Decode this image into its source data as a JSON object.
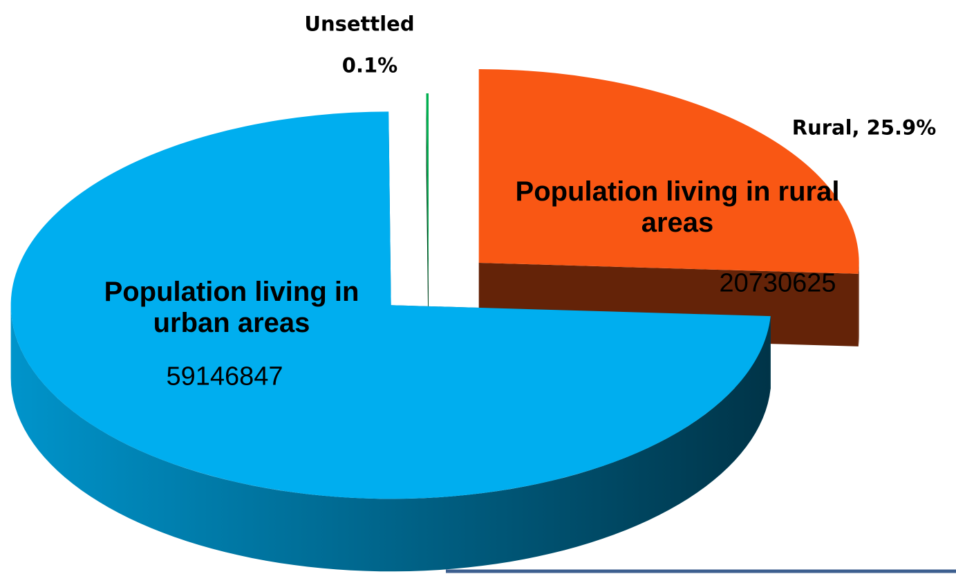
{
  "chart_data": {
    "type": "pie3d",
    "categories": [
      "Population living in rural areas",
      "Population living in urban areas",
      "Unsettled"
    ],
    "values": [
      25.9,
      74.0,
      0.1
    ],
    "value_labels": [
      "Rural, 25.9%",
      null,
      "0.1%"
    ],
    "counts": [
      "20730625",
      "59146847",
      null
    ],
    "colors": [
      "#f95714",
      "#00aeef",
      "#00b050"
    ]
  }
}
